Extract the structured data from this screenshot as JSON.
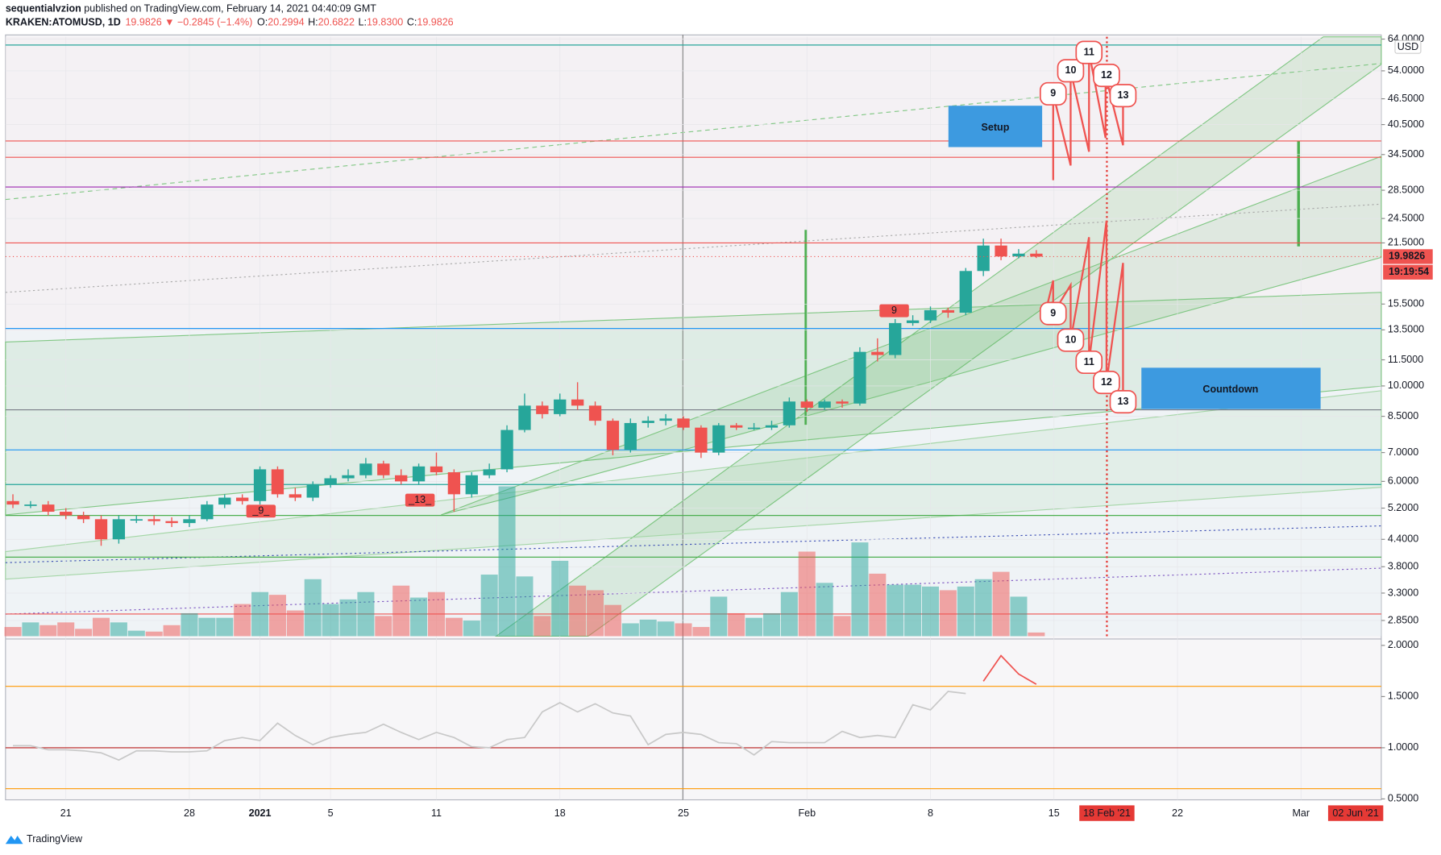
{
  "header": {
    "author": "sequentialvzion",
    "published": " published on TradingView.com, February 14, 2021 04:40:09 GMT",
    "symbol": "KRAKEN:ATOMUSD, 1D",
    "price": "19.9826",
    "arrow": "▼",
    "change": "−0.2845 (−1.4%)",
    "o_label": "O:",
    "o": "20.2994",
    "h_label": "H:",
    "h": "20.6822",
    "l_label": "L:",
    "l": "19.8300",
    "c_label": "C:",
    "c": "19.9826"
  },
  "footer": "TradingView",
  "chart_data": {
    "type": "candlestick",
    "log_scale": true,
    "currency": "USD",
    "up_color": "#26a69a",
    "down_color": "#ef5350",
    "xlim": [
      -0.42,
      77.55
    ],
    "xticks": [
      {
        "value": 3,
        "label": "21"
      },
      {
        "value": 10,
        "label": "28"
      },
      {
        "value": 14,
        "label": "2021"
      },
      {
        "value": 18,
        "label": "5"
      },
      {
        "value": 24,
        "label": "11"
      },
      {
        "value": 31,
        "label": "18"
      },
      {
        "value": 38,
        "label": "25"
      },
      {
        "value": 45,
        "label": "Feb"
      },
      {
        "value": 52,
        "label": "8"
      },
      {
        "value": 59,
        "label": "15"
      },
      {
        "value": 66,
        "label": "22"
      },
      {
        "value": 73,
        "label": "Mar"
      }
    ],
    "highlight_dates": [
      {
        "value": 62,
        "label": "18 Feb '21"
      },
      {
        "value": 76.1,
        "label": "02 Jun '21"
      }
    ],
    "ylim": [
      2.62,
      64.8
    ],
    "yticks": [
      {
        "value": 64,
        "label": "64.0000"
      },
      {
        "value": 54,
        "label": "54.0000"
      },
      {
        "value": 46.5,
        "label": "46.5000"
      },
      {
        "value": 40.5,
        "label": "40.5000"
      },
      {
        "value": 34.5,
        "label": "34.5000"
      },
      {
        "value": 28.5,
        "label": "28.5000"
      },
      {
        "value": 24.5,
        "label": "24.5000"
      },
      {
        "value": 21.5,
        "label": "21.5000"
      },
      {
        "value": 15.5,
        "label": "15.5000"
      },
      {
        "value": 13.5,
        "label": "13.5000"
      },
      {
        "value": 11.5,
        "label": "11.5000"
      },
      {
        "value": 10,
        "label": "10.0000"
      },
      {
        "value": 8.5,
        "label": "8.5000"
      },
      {
        "value": 7,
        "label": "7.0000"
      },
      {
        "value": 6,
        "label": "6.0000"
      },
      {
        "value": 5.2,
        "label": "5.2000"
      },
      {
        "value": 4.4,
        "label": "4.4000"
      },
      {
        "value": 3.8,
        "label": "3.8000"
      },
      {
        "value": 3.3,
        "label": "3.3000"
      },
      {
        "value": 2.85,
        "label": "2.8500"
      }
    ],
    "last_price": {
      "value": 19.9826,
      "label": "19.9826",
      "timer": "19:19:54"
    },
    "open": [
      5.4,
      5.3,
      5.3,
      5.1,
      5.0,
      4.9,
      4.4,
      4.9,
      4.9,
      4.85,
      4.8,
      4.9,
      5.3,
      5.5,
      5.4,
      6.4,
      5.6,
      5.5,
      5.9,
      6.1,
      6.2,
      6.6,
      6.2,
      6.0,
      6.5,
      6.3,
      5.6,
      6.2,
      6.4,
      7.9,
      9.0,
      8.6,
      9.3,
      9.0,
      8.3,
      7.1,
      8.2,
      8.3,
      8.4,
      8.0,
      7.0,
      8.1,
      8.0,
      8.0,
      8.1,
      9.2,
      8.9,
      9.2,
      9.1,
      12.0,
      11.8,
      14.0,
      14.2,
      15.0,
      14.8,
      18.5,
      21.2,
      20.0,
      20.2994
    ],
    "high": [
      5.6,
      5.4,
      5.4,
      5.2,
      5.1,
      5.0,
      5.0,
      5.0,
      5.0,
      4.95,
      5.0,
      5.4,
      5.6,
      5.6,
      6.5,
      6.5,
      5.8,
      6.0,
      6.2,
      6.4,
      6.8,
      6.7,
      6.4,
      6.6,
      7.0,
      6.4,
      6.3,
      6.6,
      8.1,
      9.6,
      9.2,
      9.6,
      10.2,
      9.2,
      8.4,
      8.4,
      8.5,
      8.6,
      8.5,
      8.1,
      8.2,
      8.2,
      8.2,
      8.3,
      9.4,
      9.3,
      9.3,
      9.3,
      12.3,
      12.9,
      14.3,
      14.6,
      15.3,
      15.2,
      18.8,
      22.0,
      22.0,
      20.8,
      20.6822
    ],
    "low": [
      5.2,
      5.2,
      5.0,
      4.9,
      4.8,
      4.25,
      4.3,
      4.8,
      4.75,
      4.7,
      4.7,
      4.85,
      5.2,
      5.3,
      5.3,
      5.5,
      5.4,
      5.4,
      5.8,
      6.0,
      6.1,
      6.1,
      5.9,
      5.9,
      6.2,
      5.1,
      5.5,
      6.1,
      6.3,
      7.8,
      8.4,
      8.5,
      8.8,
      8.1,
      6.9,
      7.0,
      8.0,
      8.1,
      7.9,
      6.8,
      6.9,
      7.9,
      7.9,
      7.9,
      8.0,
      8.7,
      8.8,
      8.9,
      9.0,
      11.4,
      11.6,
      13.8,
      14.0,
      14.4,
      14.6,
      18.0,
      19.6,
      19.8,
      19.83
    ],
    "close": [
      5.3,
      5.3,
      5.1,
      5.0,
      4.9,
      4.4,
      4.9,
      4.9,
      4.85,
      4.8,
      4.9,
      5.3,
      5.5,
      5.4,
      6.4,
      5.6,
      5.5,
      5.9,
      6.1,
      6.2,
      6.6,
      6.2,
      6.0,
      6.5,
      6.3,
      5.6,
      6.2,
      6.4,
      7.9,
      9.0,
      8.6,
      9.3,
      9.0,
      8.3,
      7.1,
      8.2,
      8.3,
      8.4,
      8.0,
      7.0,
      8.1,
      8.0,
      8.0,
      8.1,
      9.2,
      8.9,
      9.2,
      9.1,
      12.0,
      11.8,
      14.0,
      14.2,
      15.0,
      14.8,
      18.5,
      21.2,
      20.0,
      20.3,
      19.9826
    ],
    "volume": [
      10,
      15,
      12,
      15,
      8,
      20,
      15,
      6,
      5,
      12,
      25,
      20,
      20,
      35,
      48,
      45,
      28,
      62,
      35,
      40,
      48,
      22,
      55,
      42,
      48,
      20,
      17,
      67,
      163,
      65,
      22,
      82,
      55,
      50,
      34,
      14,
      18,
      16,
      14,
      10,
      43,
      25,
      20,
      25,
      48,
      92,
      58,
      22,
      102,
      68,
      56,
      56,
      54,
      50,
      54,
      62,
      70,
      43,
      4
    ],
    "hlines": [
      {
        "value": 62,
        "color": "#26a69a"
      },
      {
        "value": 37.1,
        "color": "#ef5350"
      },
      {
        "value": 34.0,
        "color": "#ef5350"
      },
      {
        "value": 29.0,
        "color": "#9c27b0"
      },
      {
        "value": 21.5,
        "color": "#ef5350"
      },
      {
        "value": 13.6,
        "color": "#2196f3"
      },
      {
        "value": 8.8,
        "color": "#787b86"
      },
      {
        "value": 7.1,
        "color": "#2196f3"
      },
      {
        "value": 5.9,
        "color": "#26a69a"
      },
      {
        "value": 5.0,
        "color": "#4caf50"
      },
      {
        "value": 4.0,
        "color": "#4caf50"
      },
      {
        "value": 2.95,
        "color": "#ef5350"
      }
    ],
    "setup": {
      "title": "Setup",
      "labels": [
        "9",
        "10",
        "11",
        "12",
        "13"
      ]
    },
    "countdown": {
      "title": "Countdown",
      "labels": [
        "9",
        "10",
        "11",
        "12",
        "13"
      ]
    },
    "td_labels": [
      "9",
      "_9_",
      "_13_"
    ],
    "indicator": {
      "type": "line",
      "ylim": [
        0.491,
        2.045
      ],
      "yticks": [
        {
          "value": 2,
          "label": "2.0000"
        },
        {
          "value": 1.5,
          "label": "1.5000"
        },
        {
          "value": 1,
          "label": "1.0000"
        },
        {
          "value": 0.5,
          "label": "0.5000"
        }
      ],
      "hlines": [
        {
          "value": 1.6,
          "color": "#ff9800"
        },
        {
          "value": 1.0,
          "color": "#b71c1c"
        },
        {
          "value": 0.6,
          "color": "#ff9800"
        }
      ],
      "series": [
        {
          "color": "#c8c8c8",
          "x": [
            0,
            1,
            2,
            3,
            4,
            5,
            6,
            7,
            8,
            9,
            10,
            11,
            12,
            13,
            14,
            15,
            16,
            17,
            18,
            19,
            20,
            21,
            22,
            23,
            24,
            25,
            26,
            27,
            28,
            29,
            30,
            31,
            32,
            33,
            34,
            35,
            36,
            37,
            38,
            39,
            40,
            41,
            42,
            43,
            44,
            45,
            46,
            47,
            48,
            49,
            50,
            51,
            52,
            53,
            54
          ],
          "values": [
            1.02,
            1.02,
            0.98,
            0.98,
            0.97,
            0.95,
            0.88,
            0.97,
            0.97,
            0.96,
            0.96,
            0.97,
            1.07,
            1.1,
            1.07,
            1.24,
            1.12,
            1.03,
            1.1,
            1.13,
            1.15,
            1.23,
            1.15,
            1.08,
            1.15,
            1.1,
            1.01,
            1.0,
            1.08,
            1.1,
            1.35,
            1.44,
            1.35,
            1.43,
            1.34,
            1.31,
            1.03,
            1.13,
            1.15,
            1.13,
            1.05,
            1.04,
            0.93,
            1.06,
            1.05,
            1.05,
            1.05,
            1.16,
            1.1,
            1.12,
            1.1,
            1.42,
            1.37,
            1.55,
            1.53
          ]
        },
        {
          "color": "#ef5350",
          "x": [
            55,
            56,
            57,
            58
          ],
          "values": [
            1.65,
            1.9,
            1.72,
            1.62
          ]
        }
      ]
    }
  }
}
